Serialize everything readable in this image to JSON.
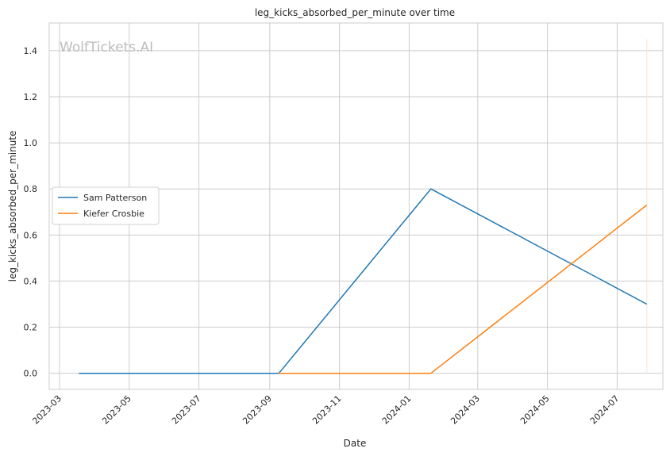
{
  "chart_data": {
    "type": "line",
    "title": "leg_kicks_absorbed_per_minute over time",
    "xlabel": "Date",
    "ylabel": "leg_kicks_absorbed_per_minute",
    "watermark": "WolfTickets.AI",
    "x_range": [
      "2023-02-20",
      "2024-08-10"
    ],
    "ylim": [
      -0.07,
      1.52
    ],
    "x_ticks": [
      "2023-03-01",
      "2023-05-01",
      "2023-07-01",
      "2023-09-01",
      "2023-11-01",
      "2024-01-01",
      "2024-03-01",
      "2024-05-01",
      "2024-07-01"
    ],
    "x_tick_labels": [
      "2023-03",
      "2023-05",
      "2023-07",
      "2023-09",
      "2023-11",
      "2024-01",
      "2024-03",
      "2024-05",
      "2024-07"
    ],
    "y_ticks": [
      0.0,
      0.2,
      0.4,
      0.6,
      0.8,
      1.0,
      1.2,
      1.4
    ],
    "y_tick_labels": [
      "0.0",
      "0.2",
      "0.4",
      "0.6",
      "0.8",
      "1.0",
      "1.2",
      "1.4"
    ],
    "grid": true,
    "legend_position": "center-left",
    "series": [
      {
        "name": "Sam Patterson",
        "color": "#1f77b4",
        "x": [
          "2023-03-18",
          "2023-09-09",
          "2024-01-20",
          "2024-07-27"
        ],
        "y": [
          0.0,
          0.0,
          0.8,
          0.3
        ]
      },
      {
        "name": "Kiefer Crosbie",
        "color": "#ff7f0e",
        "x": [
          "2023-09-09",
          "2024-01-20",
          "2024-07-27"
        ],
        "y": [
          0.0,
          0.0,
          0.73
        ]
      }
    ],
    "marker_line": {
      "x": "2024-07-27",
      "y": [
        0.0,
        1.45
      ],
      "color": "#f5e6d3"
    }
  }
}
